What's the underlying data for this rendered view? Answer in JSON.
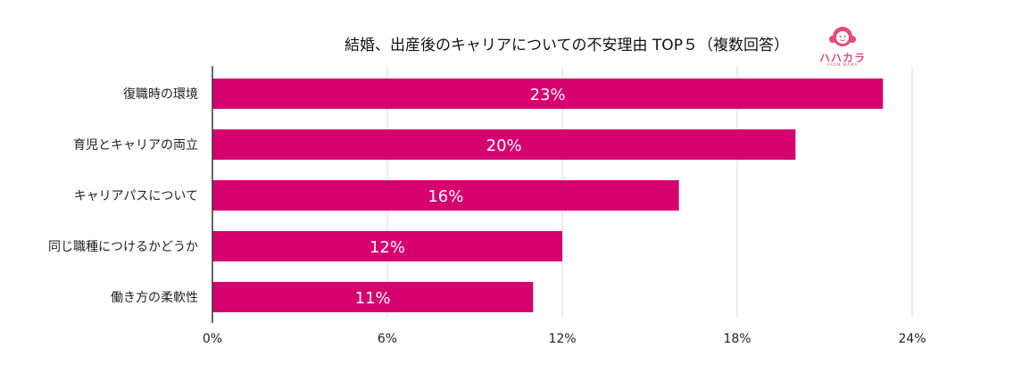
{
  "logo": {
    "text": "ハハカラ",
    "sub": "FROM MAMA"
  },
  "chart_data": {
    "type": "bar",
    "orientation": "horizontal",
    "title": "結婚、出産後のキャリアについての不安理由 TOP５（複数回答）",
    "categories": [
      "復職時の環境",
      "育児とキャリアの両立",
      "キャリアパスについて",
      "同じ職種につけるかどうか",
      "働き方の柔軟性"
    ],
    "values": [
      23,
      20,
      16,
      12,
      11
    ],
    "data_labels": [
      "23%",
      "20%",
      "16%",
      "12%",
      "11%"
    ],
    "xlim": [
      0,
      24
    ],
    "xticks": [
      0,
      6,
      12,
      18,
      24
    ],
    "xtick_labels": [
      "0%",
      "6%",
      "12%",
      "18%",
      "24%"
    ],
    "bar_color": "#d6006f",
    "grid": true,
    "xlabel": "",
    "ylabel": ""
  }
}
